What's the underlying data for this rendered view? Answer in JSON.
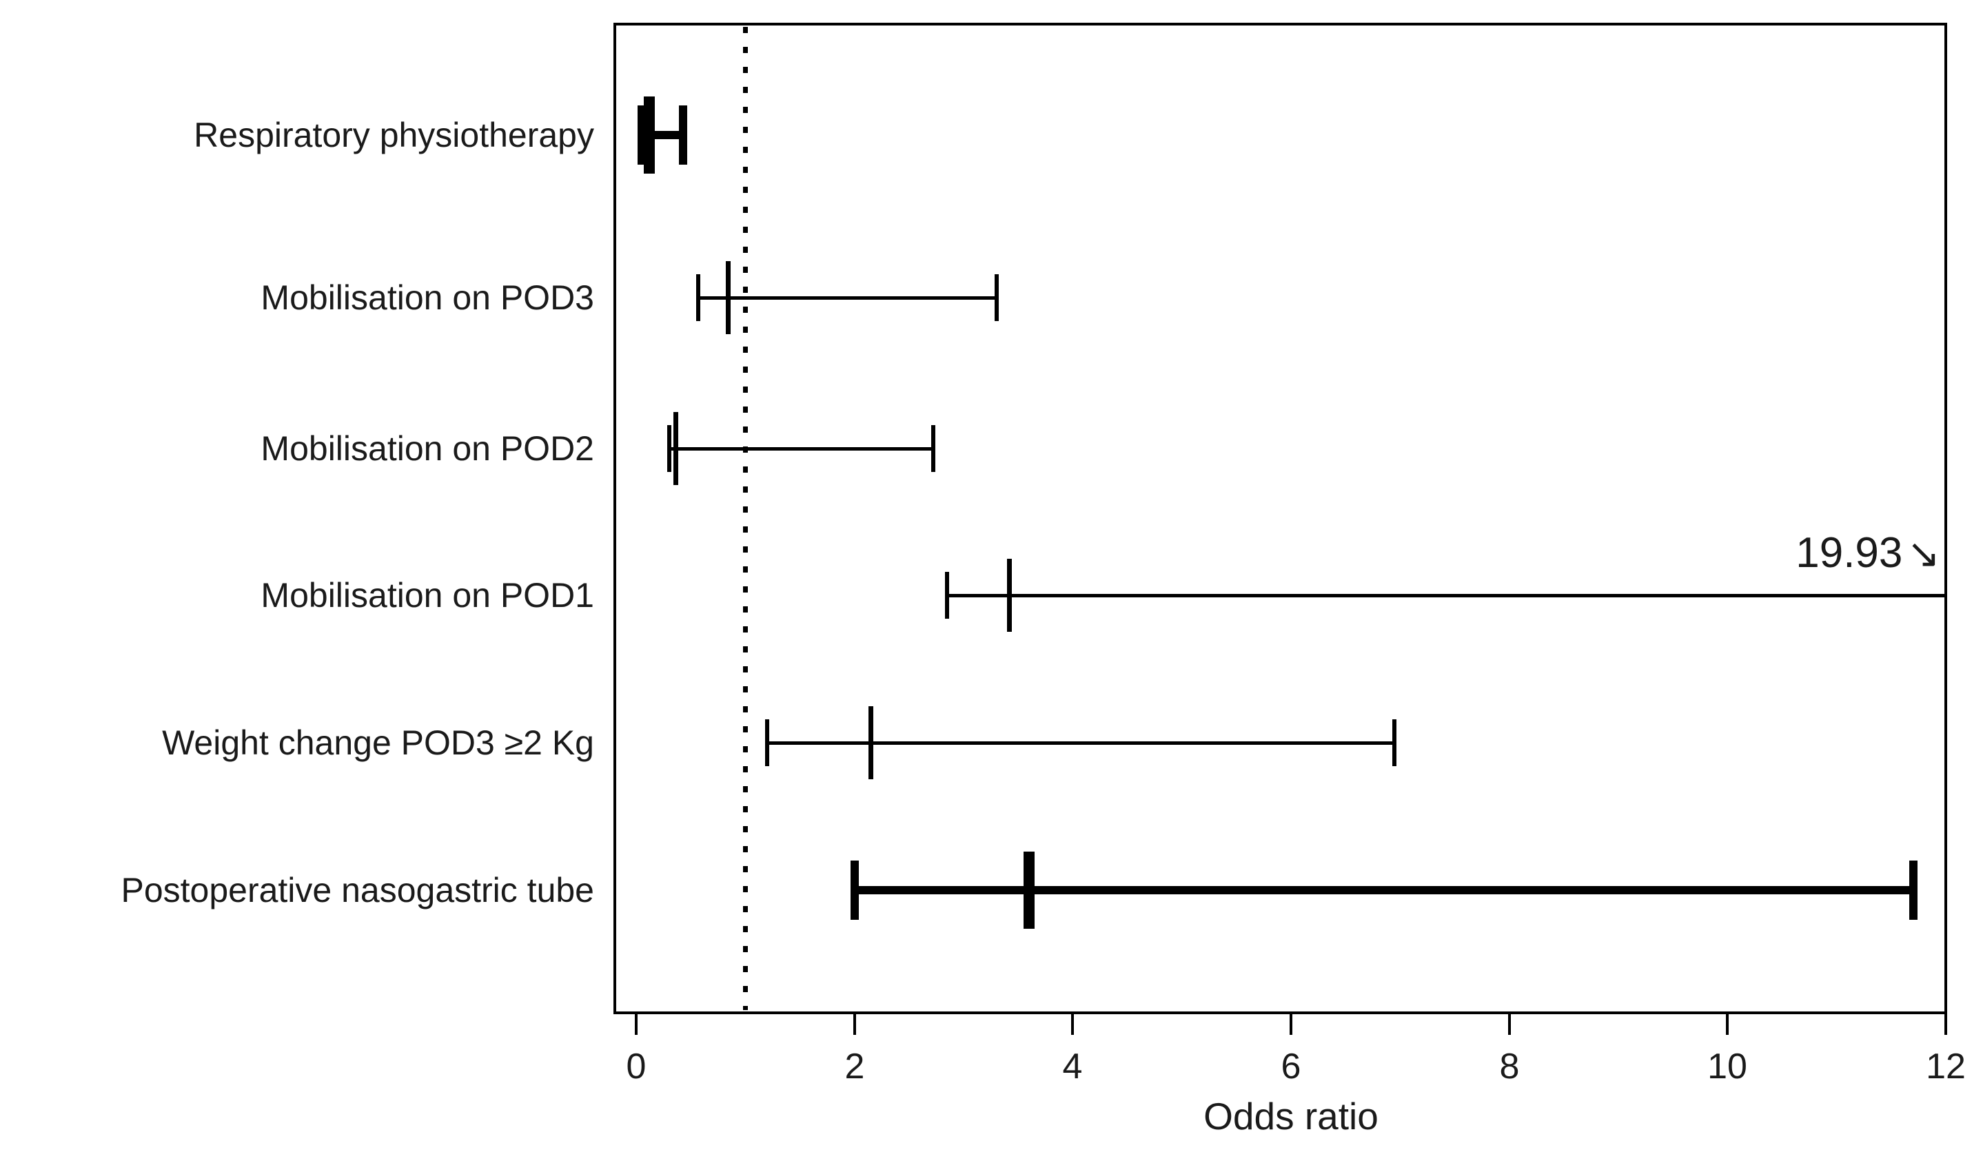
{
  "figure": {
    "background_color": "#ffffff",
    "axis_color": "#000000",
    "clip_annotation": {
      "text": "19.93",
      "arrow_glyph": "↘"
    }
  },
  "chart_data": {
    "type": "forest_plot_errorbar",
    "title": "",
    "xlabel": "Odds ratio",
    "ylabel": "",
    "xlim": [
      -0.2,
      12
    ],
    "x_ticks": [
      0,
      2,
      4,
      6,
      8,
      10,
      12
    ],
    "grid": false,
    "reference_line": {
      "x": 1,
      "style": "dotted",
      "color": "#000000"
    },
    "rows": [
      {
        "label": "Respiratory physiotherapy",
        "or": 0.12,
        "ci_low": 0.05,
        "ci_high": 0.43,
        "bold": true,
        "clipped": false
      },
      {
        "label": "Mobilisation on POD3",
        "or": 0.84,
        "ci_low": 0.57,
        "ci_high": 3.3,
        "bold": false,
        "clipped": false
      },
      {
        "label": "Mobilisation on POD2",
        "or": 0.36,
        "ci_low": 0.3,
        "ci_high": 2.72,
        "bold": false,
        "clipped": false
      },
      {
        "label": "Mobilisation on POD1",
        "or": 3.42,
        "ci_low": 2.85,
        "ci_high": 19.93,
        "bold": false,
        "clipped": true,
        "clip_label": "19.93"
      },
      {
        "label": "Weight change POD3 ≥2 Kg",
        "or": 2.15,
        "ci_low": 1.2,
        "ci_high": 6.95,
        "bold": false,
        "clipped": false
      },
      {
        "label": "Postoperative nasogastric tube",
        "or": 3.6,
        "ci_low": 2.0,
        "ci_high": 11.7,
        "bold": true,
        "clipped": false
      }
    ]
  }
}
